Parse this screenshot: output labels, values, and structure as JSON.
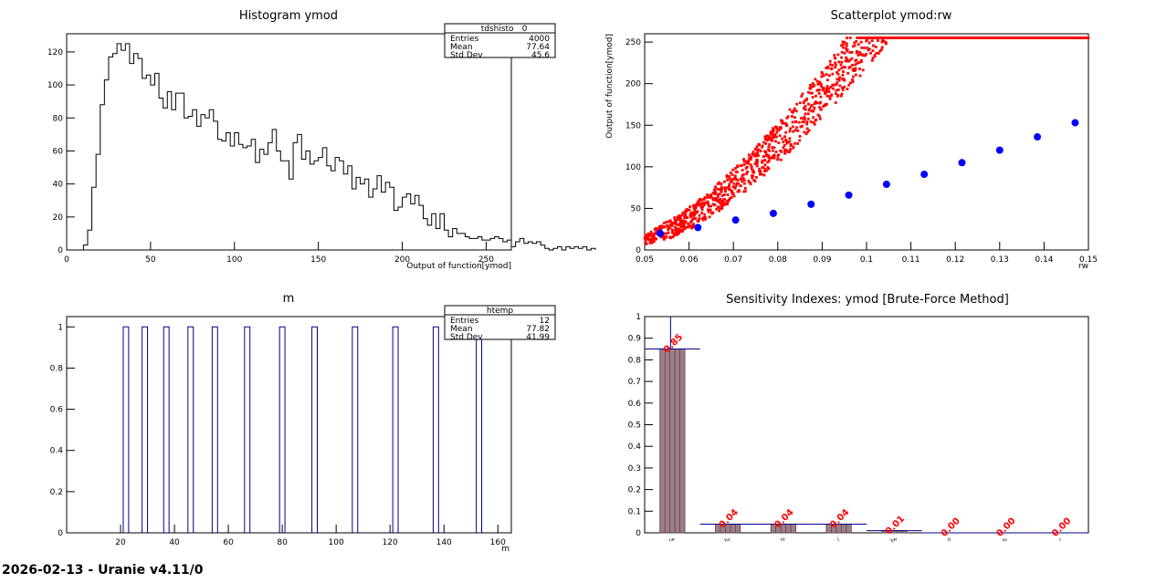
{
  "footer": "2026-02-13 - Uranie v4.11/0",
  "chart_data": [
    {
      "type": "histogram",
      "title": "Histogram ymod",
      "xlabel": "Output of function[ymod]",
      "ylabel": "",
      "xlim": [
        0,
        265
      ],
      "ylim": [
        0,
        131
      ],
      "xticks": [
        0,
        50,
        100,
        150,
        200,
        250
      ],
      "yticks": [
        0,
        20,
        40,
        60,
        80,
        100,
        120
      ],
      "bin_start": 10,
      "bin_width": 2.5,
      "values": [
        3,
        12,
        38,
        58,
        88,
        103,
        117,
        119,
        125,
        121,
        125,
        113,
        119,
        116,
        104,
        106,
        100,
        107,
        92,
        86,
        96,
        85,
        95,
        95,
        80,
        81,
        85,
        75,
        82,
        80,
        85,
        78,
        67,
        66,
        71,
        63,
        71,
        64,
        62,
        63,
        67,
        53,
        61,
        58,
        65,
        73,
        60,
        54,
        54,
        43,
        65,
        70,
        55,
        60,
        52,
        54,
        56,
        62,
        51,
        48,
        56,
        54,
        46,
        51,
        37,
        44,
        40,
        43,
        32,
        37,
        45,
        35,
        41,
        38,
        24,
        26,
        32,
        34,
        28,
        33,
        27,
        19,
        15,
        22,
        13,
        22,
        12,
        8,
        13,
        10,
        10,
        8,
        7,
        7,
        8,
        6,
        6,
        7,
        8,
        7,
        5,
        6,
        2,
        5,
        7,
        4,
        5,
        4,
        5,
        3,
        1,
        0,
        1,
        2,
        0,
        2,
        1,
        2,
        1,
        2,
        0,
        1
      ],
      "stats": {
        "name": "__tdshisto__0",
        "entries": "4000",
        "mean": "77.64",
        "std": "45.6"
      }
    },
    {
      "type": "scatter",
      "title": "Scatterplot ymod:rw",
      "xlabel": "rw",
      "ylabel": "Output of function[ymod]",
      "xlim": [
        0.05,
        0.15
      ],
      "ylim": [
        0,
        260
      ],
      "xticks": [
        "0.05",
        "0.06",
        "0.07",
        "0.08",
        "0.09",
        "0.1",
        "0.11",
        "0.12",
        "0.13",
        "0.14",
        "0.15"
      ],
      "yticks": [
        0,
        50,
        100,
        150,
        200,
        250
      ],
      "series": [
        {
          "kind": "points",
          "color": "#ff0000",
          "count": 1800,
          "trend": "quadratic increasing"
        },
        {
          "kind": "profile",
          "color": "#0000ff",
          "x": [
            0.0535,
            0.062,
            0.0705,
            0.079,
            0.0875,
            0.096,
            0.1045,
            0.113,
            0.1215,
            0.13,
            0.1385,
            0.147
          ],
          "y": [
            20,
            27,
            36,
            44,
            55,
            66,
            79,
            91,
            105,
            120,
            136,
            153
          ]
        }
      ]
    },
    {
      "type": "histogram",
      "title": "m",
      "xlabel": "m",
      "xlim": [
        0,
        165
      ],
      "ylim": [
        0,
        1.05
      ],
      "xticks": [
        20,
        40,
        60,
        80,
        100,
        120,
        140,
        160
      ],
      "yticks": [
        "0",
        "0.2",
        "0.4",
        "0.6",
        "0.8",
        "1"
      ],
      "bars": [
        {
          "x0": 21,
          "x1": 23,
          "y": 1
        },
        {
          "x0": 28,
          "x1": 30,
          "y": 1
        },
        {
          "x0": 36,
          "x1": 38,
          "y": 1
        },
        {
          "x0": 45,
          "x1": 47,
          "y": 1
        },
        {
          "x0": 54,
          "x1": 56,
          "y": 1
        },
        {
          "x0": 66,
          "x1": 68,
          "y": 1
        },
        {
          "x0": 79,
          "x1": 81,
          "y": 1
        },
        {
          "x0": 91,
          "x1": 93,
          "y": 1
        },
        {
          "x0": 106,
          "x1": 108,
          "y": 1
        },
        {
          "x0": 121,
          "x1": 123,
          "y": 1
        },
        {
          "x0": 136,
          "x1": 138,
          "y": 1
        },
        {
          "x0": 152,
          "x1": 154,
          "y": 1
        }
      ],
      "stats": {
        "name": "htemp",
        "entries": "12",
        "mean": "77.82",
        "std": "41.99"
      }
    },
    {
      "type": "bar",
      "title": "Sensitivity Indexes: ymod  [Brute-Force Method]",
      "ylim": [
        0,
        1
      ],
      "yticks": [
        "0",
        "0.1",
        "0.2",
        "0.3",
        "0.4",
        "0.5",
        "0.6",
        "0.7",
        "0.8",
        "0.9",
        "1"
      ],
      "categories": [
        "rw",
        "hu",
        "hl",
        "l",
        "kw",
        "tl",
        "tu",
        "r"
      ],
      "values": [
        0.85,
        0.04,
        0.04,
        0.04,
        0.01,
        0.0,
        0.0,
        0.0
      ],
      "labels": [
        "0.85",
        "0.04",
        "0.04",
        "0.04",
        "0.01",
        "0.00",
        "0.00",
        "0.00"
      ],
      "label_color": "#ff0000"
    }
  ]
}
